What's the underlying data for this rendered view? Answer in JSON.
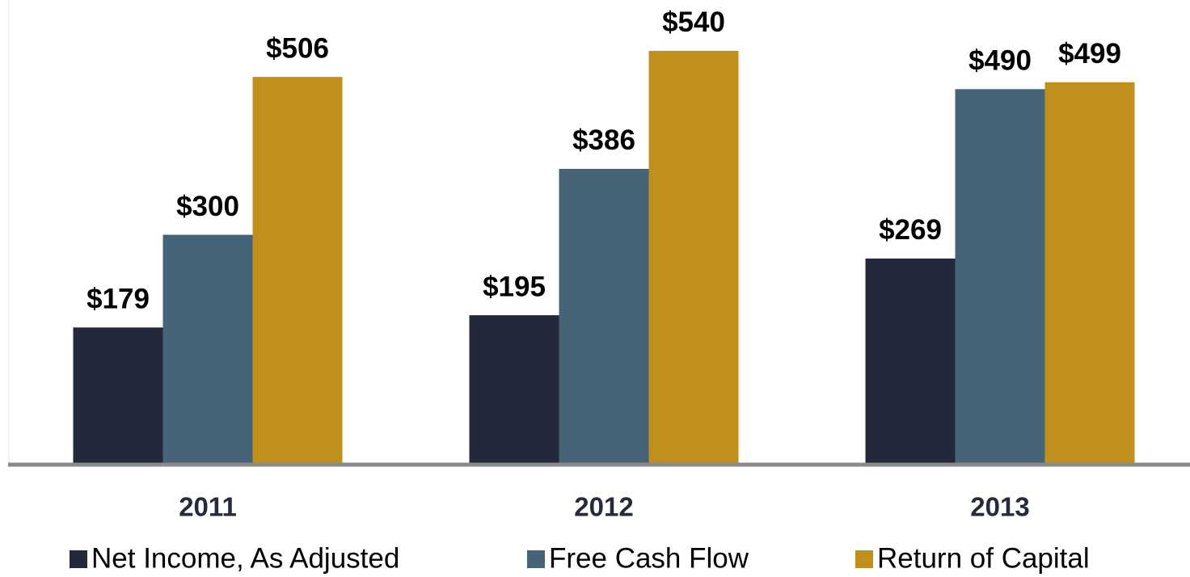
{
  "chart_data": {
    "type": "bar",
    "categories": [
      "2011",
      "2012",
      "2013"
    ],
    "series": [
      {
        "name": "Net Income, As Adjusted",
        "color": "#23283a",
        "values": [
          179,
          195,
          269
        ],
        "value_labels": [
          "$179",
          "$195",
          "$269"
        ]
      },
      {
        "name": "Free Cash Flow",
        "color": "#466478",
        "values": [
          300,
          386,
          490
        ],
        "value_labels": [
          "$300",
          "$386",
          "$490"
        ]
      },
      {
        "name": "Return of Capital",
        "color": "#c0901c",
        "values": [
          506,
          540,
          499
        ],
        "value_labels": [
          "$506",
          "$540",
          "$499"
        ]
      }
    ],
    "ylim": [
      0,
      600
    ]
  }
}
